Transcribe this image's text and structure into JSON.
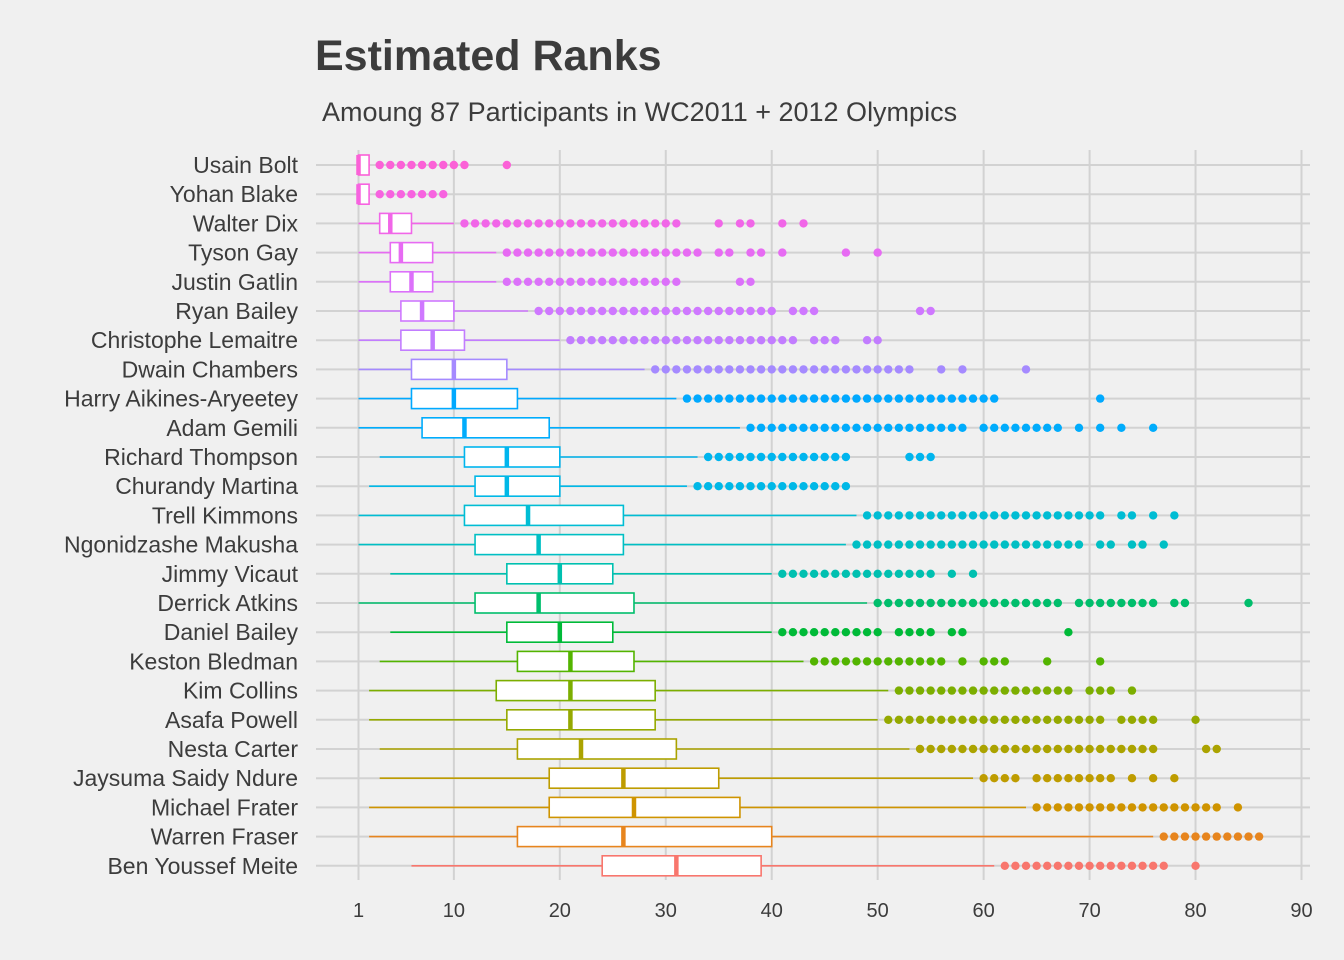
{
  "chart_data": {
    "type": "boxplot",
    "title": "Estimated Ranks",
    "subtitle": "Amoung 87 Participants in WC2011 + 2012 Olympics",
    "xlabel": "",
    "ylabel": "",
    "xlim": [
      1,
      90
    ],
    "xticks": [
      1,
      10,
      20,
      30,
      40,
      50,
      60,
      70,
      80,
      90
    ],
    "grid": true,
    "legend": "none",
    "series": [
      {
        "name": "Usain Bolt",
        "color": "#fb61d7",
        "whisker_low": 1,
        "q1": 1,
        "median": 1,
        "q3": 2,
        "whisker_high": 2,
        "outliers": [
          3,
          4,
          5,
          6,
          7,
          8,
          9,
          10,
          11,
          15
        ]
      },
      {
        "name": "Yohan Blake",
        "color": "#f763e0",
        "whisker_low": 1,
        "q1": 1,
        "median": 1,
        "q3": 2,
        "whisker_high": 2,
        "outliers": [
          3,
          4,
          5,
          6,
          7,
          8,
          9
        ]
      },
      {
        "name": "Walter Dix",
        "color": "#f166e8",
        "whisker_low": 1,
        "q1": 3,
        "median": 4,
        "q3": 6,
        "whisker_high": 10,
        "outliers": [
          11,
          12,
          13,
          14,
          15,
          16,
          17,
          18,
          19,
          20,
          21,
          22,
          23,
          24,
          25,
          26,
          27,
          28,
          29,
          30,
          31,
          35,
          37,
          38,
          41,
          43
        ]
      },
      {
        "name": "Tyson Gay",
        "color": "#e76bf3",
        "whisker_low": 1,
        "q1": 4,
        "median": 5,
        "q3": 8,
        "whisker_high": 14,
        "outliers": [
          15,
          16,
          17,
          18,
          19,
          20,
          21,
          22,
          23,
          24,
          25,
          26,
          27,
          28,
          29,
          30,
          31,
          32,
          33,
          35,
          36,
          38,
          39,
          41,
          47,
          50
        ]
      },
      {
        "name": "Justin Gatlin",
        "color": "#dc71fa",
        "whisker_low": 1,
        "q1": 4,
        "median": 6,
        "q3": 8,
        "whisker_high": 14,
        "outliers": [
          15,
          16,
          17,
          18,
          19,
          20,
          21,
          22,
          23,
          24,
          25,
          26,
          27,
          28,
          29,
          30,
          31,
          37,
          38
        ]
      },
      {
        "name": "Ryan Bailey",
        "color": "#cf78ff",
        "whisker_low": 1,
        "q1": 5,
        "median": 7,
        "q3": 10,
        "whisker_high": 17,
        "outliers": [
          18,
          19,
          20,
          21,
          22,
          23,
          24,
          25,
          26,
          27,
          28,
          29,
          30,
          31,
          32,
          33,
          34,
          35,
          36,
          37,
          38,
          39,
          40,
          42,
          43,
          44,
          54,
          55
        ]
      },
      {
        "name": "Christophe Lemaitre",
        "color": "#c27dff",
        "whisker_low": 1,
        "q1": 5,
        "median": 8,
        "q3": 11,
        "whisker_high": 20,
        "outliers": [
          21,
          22,
          23,
          24,
          25,
          26,
          27,
          28,
          29,
          30,
          31,
          32,
          33,
          34,
          35,
          36,
          37,
          38,
          39,
          40,
          41,
          42,
          44,
          45,
          46,
          49,
          50
        ]
      },
      {
        "name": "Dwain Chambers",
        "color": "#a58aff",
        "whisker_low": 1,
        "q1": 6,
        "median": 10,
        "q3": 15,
        "whisker_high": 28,
        "outliers": [
          29,
          30,
          31,
          32,
          33,
          34,
          35,
          36,
          37,
          38,
          39,
          40,
          41,
          42,
          43,
          44,
          45,
          46,
          47,
          48,
          49,
          50,
          51,
          52,
          53,
          56,
          58,
          64
        ]
      },
      {
        "name": "Harry Aikines-Aryeetey",
        "color": "#00a9ff",
        "whisker_low": 1,
        "q1": 6,
        "median": 10,
        "q3": 16,
        "whisker_high": 31,
        "outliers": [
          32,
          33,
          34,
          35,
          36,
          37,
          38,
          39,
          40,
          41,
          42,
          43,
          44,
          45,
          46,
          47,
          48,
          49,
          50,
          51,
          52,
          53,
          54,
          55,
          56,
          57,
          58,
          59,
          60,
          61,
          71
        ]
      },
      {
        "name": "Adam Gemili",
        "color": "#00acfc",
        "whisker_low": 1,
        "q1": 7,
        "median": 11,
        "q3": 19,
        "whisker_high": 37,
        "outliers": [
          38,
          39,
          40,
          41,
          42,
          43,
          44,
          45,
          46,
          47,
          48,
          49,
          50,
          51,
          52,
          53,
          54,
          55,
          56,
          57,
          58,
          60,
          61,
          62,
          63,
          64,
          65,
          66,
          67,
          69,
          71,
          73,
          76
        ]
      },
      {
        "name": "Richard Thompson",
        "color": "#00b5ee",
        "whisker_low": 3,
        "q1": 11,
        "median": 15,
        "q3": 20,
        "whisker_high": 33,
        "outliers": [
          34,
          35,
          36,
          37,
          38,
          39,
          40,
          41,
          42,
          43,
          44,
          45,
          46,
          47,
          53,
          54,
          55
        ]
      },
      {
        "name": "Churandy Martina",
        "color": "#00b8e7",
        "whisker_low": 2,
        "q1": 12,
        "median": 15,
        "q3": 20,
        "whisker_high": 32,
        "outliers": [
          33,
          34,
          35,
          36,
          37,
          38,
          39,
          40,
          41,
          42,
          43,
          44,
          45,
          46,
          47
        ]
      },
      {
        "name": "Trell Kimmons",
        "color": "#00bdd4",
        "whisker_low": 1,
        "q1": 11,
        "median": 17,
        "q3": 26,
        "whisker_high": 48,
        "outliers": [
          49,
          50,
          51,
          52,
          53,
          54,
          55,
          56,
          57,
          58,
          59,
          60,
          61,
          62,
          63,
          64,
          65,
          66,
          67,
          68,
          69,
          70,
          71,
          73,
          74,
          76,
          78
        ]
      },
      {
        "name": "Ngonidzashe Makusha",
        "color": "#00bfc4",
        "whisker_low": 1,
        "q1": 12,
        "median": 18,
        "q3": 26,
        "whisker_high": 47,
        "outliers": [
          48,
          49,
          50,
          51,
          52,
          53,
          54,
          55,
          56,
          57,
          58,
          59,
          60,
          61,
          62,
          63,
          64,
          65,
          66,
          67,
          68,
          69,
          71,
          72,
          74,
          75,
          77
        ]
      },
      {
        "name": "Jimmy Vicaut",
        "color": "#00c0b0",
        "whisker_low": 4,
        "q1": 15,
        "median": 20,
        "q3": 25,
        "whisker_high": 40,
        "outliers": [
          41,
          42,
          43,
          44,
          45,
          46,
          47,
          48,
          49,
          50,
          51,
          52,
          53,
          54,
          55,
          57,
          59
        ]
      },
      {
        "name": "Derrick Atkins",
        "color": "#00be6c",
        "whisker_low": 1,
        "q1": 12,
        "median": 18,
        "q3": 27,
        "whisker_high": 49,
        "outliers": [
          50,
          51,
          52,
          53,
          54,
          55,
          56,
          57,
          58,
          59,
          60,
          61,
          62,
          63,
          64,
          65,
          66,
          67,
          69,
          70,
          71,
          72,
          73,
          74,
          75,
          76,
          78,
          79,
          85
        ]
      },
      {
        "name": "Daniel Bailey",
        "color": "#00ba38",
        "whisker_low": 4,
        "q1": 15,
        "median": 20,
        "q3": 25,
        "whisker_high": 40,
        "outliers": [
          41,
          42,
          43,
          44,
          45,
          46,
          47,
          48,
          49,
          50,
          52,
          53,
          54,
          55,
          57,
          58,
          68
        ]
      },
      {
        "name": "Keston Bledman",
        "color": "#53b400",
        "whisker_low": 3,
        "q1": 16,
        "median": 21,
        "q3": 27,
        "whisker_high": 43,
        "outliers": [
          44,
          45,
          46,
          47,
          48,
          49,
          50,
          51,
          52,
          53,
          54,
          55,
          56,
          58,
          60,
          61,
          62,
          66,
          71
        ]
      },
      {
        "name": "Kim Collins",
        "color": "#7cae00",
        "whisker_low": 2,
        "q1": 14,
        "median": 21,
        "q3": 29,
        "whisker_high": 51,
        "outliers": [
          52,
          53,
          54,
          55,
          56,
          57,
          58,
          59,
          60,
          61,
          62,
          63,
          64,
          65,
          66,
          67,
          68,
          70,
          71,
          72,
          74
        ]
      },
      {
        "name": "Asafa Powell",
        "color": "#95a900",
        "whisker_low": 2,
        "q1": 15,
        "median": 21,
        "q3": 29,
        "whisker_high": 50,
        "outliers": [
          51,
          52,
          53,
          54,
          55,
          56,
          57,
          58,
          59,
          60,
          61,
          62,
          63,
          64,
          65,
          66,
          67,
          68,
          69,
          70,
          71,
          73,
          74,
          75,
          76,
          80
        ]
      },
      {
        "name": "Nesta Carter",
        "color": "#aba300",
        "whisker_low": 3,
        "q1": 16,
        "median": 22,
        "q3": 31,
        "whisker_high": 53,
        "outliers": [
          54,
          55,
          56,
          57,
          58,
          59,
          60,
          61,
          62,
          63,
          64,
          65,
          66,
          67,
          68,
          69,
          70,
          71,
          72,
          73,
          74,
          75,
          76,
          81,
          82
        ]
      },
      {
        "name": "Jaysuma Saidy Ndure",
        "color": "#be9c00",
        "whisker_low": 3,
        "q1": 19,
        "median": 26,
        "q3": 35,
        "whisker_high": 59,
        "outliers": [
          60,
          61,
          62,
          63,
          65,
          66,
          67,
          68,
          69,
          70,
          71,
          72,
          74,
          76,
          78
        ]
      },
      {
        "name": "Michael Frater",
        "color": "#cf9400",
        "whisker_low": 2,
        "q1": 19,
        "median": 27,
        "q3": 37,
        "whisker_high": 64,
        "outliers": [
          65,
          66,
          67,
          68,
          69,
          70,
          71,
          72,
          73,
          74,
          75,
          76,
          77,
          78,
          79,
          80,
          81,
          82,
          84
        ]
      },
      {
        "name": "Warren Fraser",
        "color": "#e7851e",
        "whisker_low": 2,
        "q1": 16,
        "median": 26,
        "q3": 40,
        "whisker_high": 76,
        "outliers": [
          77,
          78,
          79,
          80,
          81,
          82,
          83,
          84,
          85,
          86
        ]
      },
      {
        "name": "Ben Youssef Meite",
        "color": "#f8766d",
        "whisker_low": 6,
        "q1": 24,
        "median": 31,
        "q3": 39,
        "whisker_high": 61,
        "outliers": [
          62,
          63,
          64,
          65,
          66,
          67,
          68,
          69,
          70,
          71,
          72,
          73,
          74,
          75,
          76,
          77,
          80
        ]
      }
    ]
  }
}
